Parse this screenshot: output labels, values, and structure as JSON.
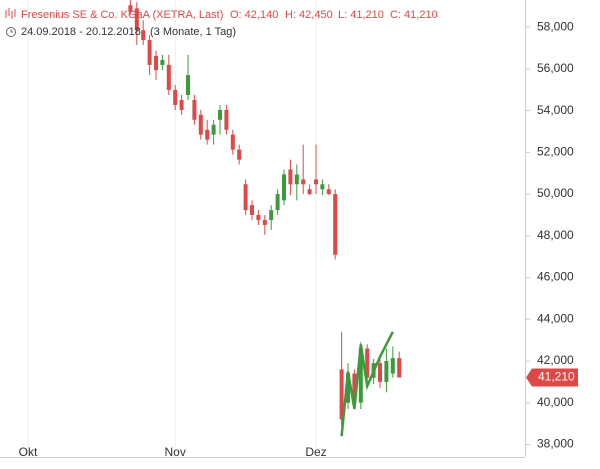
{
  "chart_data": {
    "type": "candlestick",
    "title": "Fresenius SE & Co. KGaA (XETRA, Last)",
    "stats": [
      "O: 42,140",
      "H: 42,450",
      "L: 41,210",
      "C: 41,210"
    ],
    "date_range": "24.09.2018 - 20.12.2018",
    "period": "(3 Monate, 1 Tag)",
    "categories": [
      null,
      null,
      null,
      null,
      null,
      "Okt",
      null,
      null,
      null,
      null,
      null,
      null,
      null,
      null,
      null,
      null,
      null,
      null,
      null,
      null,
      null,
      null,
      null,
      null,
      null,
      null,
      null,
      null,
      "Nov",
      null,
      null,
      null,
      null,
      null,
      null,
      null,
      null,
      null,
      null,
      null,
      null,
      null,
      null,
      null,
      null,
      null,
      null,
      null,
      null,
      null,
      "Dez",
      null,
      null,
      null,
      null,
      null,
      null,
      null,
      null,
      null,
      null,
      null,
      null,
      null
    ],
    "open": [
      null,
      null,
      null,
      null,
      null,
      null,
      null,
      null,
      null,
      null,
      null,
      null,
      null,
      null,
      null,
      null,
      null,
      null,
      null,
      null,
      null,
      59050,
      58900,
      57850,
      57380,
      56620,
      56190,
      56190,
      54990,
      54510,
      54750,
      54510,
      53800,
      53080,
      52850,
      53560,
      54030,
      52850,
      52130,
      50470,
      49470,
      49000,
      48760,
      48760,
      49230,
      49700,
      51180,
      50470,
      50700,
      50230,
      50700,
      50230,
      50230,
      50000,
      41600,
      40000,
      41400,
      40000,
      42600,
      41200,
      41900,
      41000,
      41400,
      42140
    ],
    "high": [
      null,
      null,
      null,
      null,
      null,
      null,
      null,
      null,
      null,
      null,
      null,
      null,
      null,
      null,
      null,
      null,
      null,
      null,
      null,
      null,
      null,
      59292,
      59200,
      58330,
      57620,
      56860,
      56670,
      56670,
      55230,
      54750,
      56670,
      54750,
      54030,
      53560,
      53560,
      54270,
      54270,
      53080,
      52370,
      50700,
      49700,
      49230,
      49000,
      49470,
      50230,
      51180,
      51650,
      51420,
      52370,
      50470,
      52370,
      50700,
      50470,
      50230,
      43400,
      41900,
      41600,
      42900,
      42800,
      42100,
      42100,
      42600,
      42700,
      42450
    ],
    "low": [
      null,
      null,
      null,
      null,
      null,
      null,
      null,
      null,
      null,
      null,
      null,
      null,
      null,
      null,
      null,
      null,
      null,
      null,
      null,
      null,
      null,
      58580,
      57140,
      57140,
      55700,
      55470,
      55940,
      54750,
      54030,
      53800,
      54510,
      53320,
      52610,
      52370,
      52370,
      52850,
      52850,
      51890,
      51420,
      49000,
      48760,
      48520,
      48050,
      48280,
      49000,
      49470,
      49950,
      49700,
      50000,
      49950,
      50000,
      49950,
      49950,
      46860,
      38900,
      39700,
      39700,
      39700,
      40900,
      40900,
      40700,
      40500,
      41200,
      41210
    ],
    "close": [
      null,
      null,
      null,
      null,
      null,
      null,
      null,
      null,
      null,
      null,
      null,
      null,
      null,
      null,
      null,
      null,
      null,
      null,
      null,
      null,
      null,
      58720,
      57850,
      57380,
      56190,
      55940,
      56430,
      54990,
      54270,
      54030,
      55700,
      53560,
      52850,
      52610,
      53320,
      54030,
      53080,
      52130,
      51650,
      49230,
      49000,
      48760,
      48520,
      49230,
      50000,
      50940,
      50470,
      50940,
      50470,
      50000,
      50470,
      50470,
      50000,
      47090,
      39200,
      41400,
      40000,
      42600,
      41200,
      41900,
      41000,
      42000,
      42140,
      41210
    ],
    "up_color": "#3c9a3c",
    "down_color": "#e04848",
    "overlay": {
      "color": "#3c9a3c",
      "values": [
        null,
        null,
        null,
        null,
        null,
        null,
        null,
        null,
        null,
        null,
        null,
        null,
        null,
        null,
        null,
        null,
        null,
        null,
        null,
        null,
        null,
        null,
        null,
        null,
        null,
        null,
        null,
        null,
        null,
        null,
        null,
        null,
        null,
        null,
        null,
        null,
        null,
        null,
        null,
        null,
        null,
        null,
        null,
        null,
        null,
        null,
        null,
        null,
        null,
        null,
        null,
        null,
        null,
        null,
        38400,
        41500,
        39700,
        42800,
        40800,
        41500,
        42200,
        42800,
        43400,
        null
      ]
    },
    "last_price": {
      "value": 41210,
      "label": "41,210"
    },
    "ylim": [
      37400,
      59300
    ],
    "yticks": [
      {
        "value": 38000,
        "label": "38,000"
      },
      {
        "value": 40000,
        "label": "40,000"
      },
      {
        "value": 42000,
        "label": "42,000"
      },
      {
        "value": 44000,
        "label": "44,000"
      },
      {
        "value": 46000,
        "label": "46,000"
      },
      {
        "value": 48000,
        "label": "48,000"
      },
      {
        "value": 50000,
        "label": "50,000"
      },
      {
        "value": 52000,
        "label": "52,000"
      },
      {
        "value": 54000,
        "label": "54,000"
      },
      {
        "value": 56000,
        "label": "56,000"
      },
      {
        "value": 58000,
        "label": "58,000"
      }
    ]
  }
}
